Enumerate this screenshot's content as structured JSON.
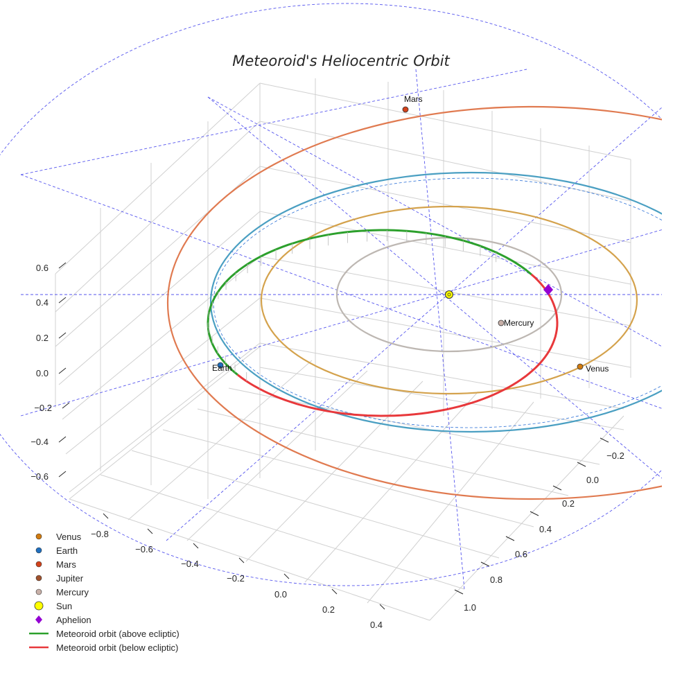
{
  "chart_data": {
    "type": "scatter",
    "projection": "3d",
    "title": "Meteoroid's Heliocentric Orbit",
    "xlabel": "",
    "ylabel": "",
    "zlabel": "",
    "grid": true,
    "legend_position": "bottom-left",
    "axes": {
      "x": {
        "ticks": [
          "−0.8",
          "−0.6",
          "−0.4",
          "−0.2",
          "0.0",
          "0.2",
          "0.4"
        ]
      },
      "y": {
        "ticks": [
          "−0.2",
          "0.0",
          "0.2",
          "0.4",
          "0.6",
          "0.8",
          "1.0"
        ]
      },
      "z": {
        "ticks": [
          "−0.6",
          "−0.4",
          "−0.2",
          "0.0",
          "0.2",
          "0.4",
          "0.6"
        ]
      }
    },
    "planet_orbits": [
      {
        "name": "Mercury",
        "a_au": 0.39,
        "color": "#bdb7b2"
      },
      {
        "name": "Venus",
        "a_au": 0.72,
        "color": "#d4a24c"
      },
      {
        "name": "Earth",
        "a_au": 1.0,
        "color": "#4a9fc2"
      },
      {
        "name": "Mars",
        "a_au": 1.52,
        "color": "#e07a50"
      }
    ],
    "bodies": [
      {
        "name": "Venus",
        "label": "Venus",
        "color": "#d17b0f"
      },
      {
        "name": "Earth",
        "label": "Earth",
        "color": "#1f6fbf"
      },
      {
        "name": "Mars",
        "label": "Mars",
        "color": "#d2421b"
      },
      {
        "name": "Jupiter",
        "label": "",
        "color": "#a0522d"
      },
      {
        "name": "Mercury",
        "label": "Mercury",
        "color": "#c8b0a8"
      },
      {
        "name": "Sun",
        "label": "",
        "color": "#ffff00"
      },
      {
        "name": "Aphelion",
        "label": "",
        "color": "#9400d3"
      }
    ],
    "meteoroid_orbit": [
      {
        "name": "Meteoroid orbit (above ecliptic)",
        "color": "#2ca02c"
      },
      {
        "name": "Meteoroid orbit (below ecliptic)",
        "color": "#e8383b"
      }
    ]
  },
  "legend": [
    {
      "label": "Venus",
      "kind": "marker",
      "color": "#d17b0f"
    },
    {
      "label": "Earth",
      "kind": "marker",
      "color": "#1f6fbf"
    },
    {
      "label": "Mars",
      "kind": "marker",
      "color": "#d2421b"
    },
    {
      "label": "Jupiter",
      "kind": "marker",
      "color": "#a0522d"
    },
    {
      "label": "Mercury",
      "kind": "marker",
      "color": "#c8b0a8"
    },
    {
      "label": "Sun",
      "kind": "sun",
      "color": "#ffff00"
    },
    {
      "label": "Aphelion",
      "kind": "diamond",
      "color": "#9400d3"
    },
    {
      "label": "Meteoroid orbit (above ecliptic)",
      "kind": "line",
      "color": "#2ca02c"
    },
    {
      "label": "Meteoroid orbit (below ecliptic)",
      "kind": "line",
      "color": "#e8383b"
    }
  ]
}
